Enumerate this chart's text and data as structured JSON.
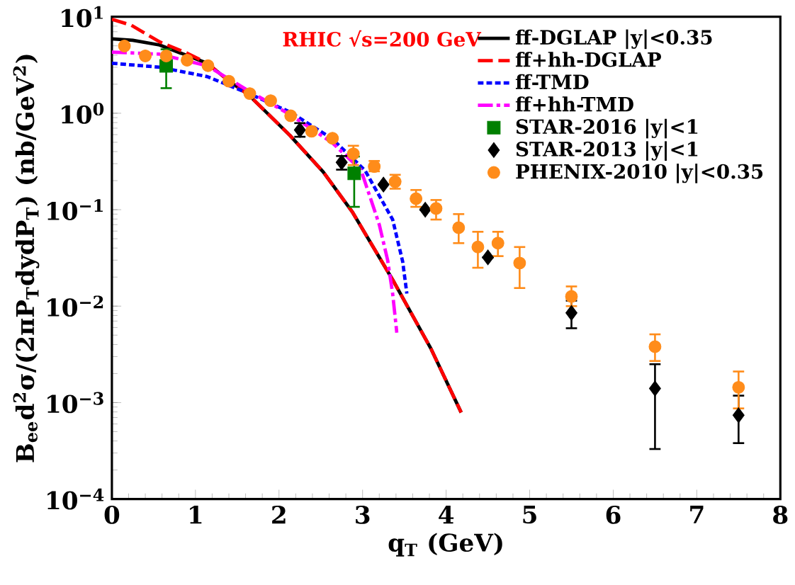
{
  "chart_data": {
    "type": "line",
    "xlabel": "q$_{T}$ (GeV)",
    "ylabel": "B$_{ee}$d$^{2}$σ/(2πP$_{T}$dydP$_{T}$) (nb/GeV$^{2}$)",
    "annotations": [
      "RHIC √s=200 GeV"
    ],
    "log": "y",
    "xlim": [
      0,
      8
    ],
    "xticks": [
      0,
      1,
      2,
      3,
      4,
      5,
      6,
      7,
      8
    ],
    "ylim": [
      0.0001,
      10
    ],
    "yticks": [
      {
        "value": 0.0001,
        "label": "10$^{−4}$"
      },
      {
        "value": 0.001,
        "label": "10$^{−3}$"
      },
      {
        "value": 0.01,
        "label": "10$^{−2}$"
      },
      {
        "value": 0.1,
        "label": "10$^{−1}$"
      },
      {
        "value": 1,
        "label": "10$^{0}$"
      },
      {
        "value": 10,
        "label": "10$^{1}$"
      }
    ],
    "legend": "top right",
    "series": [
      {
        "name": "ff-DGLAP |y|<0.35",
        "color": "#000000",
        "line_style": "solid",
        "marker": "none",
        "x": [
          0,
          0.25,
          0.57,
          1.14,
          1.39,
          1.64,
          2.13,
          2.53,
          2.88,
          3.36,
          3.82,
          4.18
        ],
        "values": [
          5.9,
          5.7,
          5.1,
          3.3,
          2.2,
          1.54,
          0.59,
          0.246,
          0.094,
          0.0188,
          0.0036,
          0.00079
        ]
      },
      {
        "name": "ff+hh-DGLAP",
        "color": "#ff0000",
        "line_style": "dashed",
        "marker": "none",
        "x": [
          0,
          0.23,
          0.57,
          0.9,
          1.14,
          1.39,
          1.64,
          2.13,
          2.53,
          2.88,
          3.36,
          3.82,
          4.18
        ],
        "values": [
          9.4,
          8.2,
          5.5,
          4.2,
          3.3,
          2.2,
          1.54,
          0.59,
          0.246,
          0.094,
          0.0188,
          0.0036,
          0.00079
        ]
      },
      {
        "name": "ff-TMD",
        "color": "#0000ff",
        "line_style": "dotted",
        "marker": "none",
        "x": [
          0,
          0.57,
          1.14,
          1.64,
          2.13,
          2.63,
          3.03,
          3.36,
          3.48,
          3.53
        ],
        "values": [
          3.3,
          3.0,
          2.4,
          1.6,
          1.03,
          0.55,
          0.255,
          0.079,
          0.029,
          0.0135
        ]
      },
      {
        "name": "ff+hh-TMD",
        "color": "#ff00ff",
        "line_style": "dashdot",
        "marker": "none",
        "x": [
          0,
          0.57,
          1.14,
          1.64,
          2.13,
          2.63,
          2.98,
          3.2,
          3.3,
          3.36,
          3.41
        ],
        "values": [
          4.3,
          4.1,
          3.1,
          1.7,
          0.97,
          0.5,
          0.26,
          0.07,
          0.03,
          0.0135,
          0.0053
        ]
      },
      {
        "name": "STAR-2016 |y|<1",
        "type": "scatter",
        "color": "#008000",
        "marker": "square",
        "x": [
          0.65,
          2.9
        ],
        "values": [
          3.1,
          0.238
        ],
        "errors": [
          [
            1.82,
            4.6
          ],
          [
            0.107,
            0.356
          ]
        ]
      },
      {
        "name": "STAR-2013 |y|<1",
        "type": "scatter",
        "color": "#000000",
        "marker": "diamond",
        "x": [
          2.25,
          2.75,
          3.25,
          3.75,
          4.5,
          5.5,
          6.5,
          7.5
        ],
        "values": [
          0.67,
          0.31,
          0.182,
          0.1,
          0.032,
          0.0085,
          0.0014,
          0.00074
        ],
        "errors": [
          [
            0.57,
            0.79
          ],
          [
            0.26,
            0.36
          ],
          null,
          null,
          null,
          [
            0.0059,
            0.0114
          ],
          [
            0.00033,
            0.0025
          ],
          [
            0.00038,
            0.00118
          ]
        ]
      },
      {
        "name": "PHENIX-2010 |y|<0.35",
        "type": "scatter",
        "color": "#ff8c1a",
        "marker": "circle",
        "x": [
          0.15,
          0.4,
          0.65,
          0.9,
          1.15,
          1.4,
          1.65,
          1.9,
          2.14,
          2.39,
          2.64,
          2.89,
          3.14,
          3.39,
          3.64,
          3.88,
          4.15,
          4.38,
          4.62,
          4.88,
          5.5,
          6.5,
          7.5
        ],
        "values": [
          4.97,
          3.93,
          3.93,
          3.55,
          3.11,
          2.15,
          1.6,
          1.35,
          0.94,
          0.65,
          0.55,
          0.38,
          0.28,
          0.195,
          0.13,
          0.103,
          0.065,
          0.041,
          0.045,
          0.028,
          0.0126,
          0.0038,
          0.00144
        ],
        "errors": [
          null,
          null,
          null,
          null,
          null,
          null,
          null,
          null,
          null,
          null,
          null,
          [
            0.29,
            0.46
          ],
          [
            0.25,
            0.32
          ],
          [
            0.165,
            0.23
          ],
          [
            0.107,
            0.16
          ],
          [
            0.079,
            0.126
          ],
          [
            0.045,
            0.09
          ],
          [
            0.025,
            0.059
          ],
          [
            0.033,
            0.059
          ],
          [
            0.0154,
            0.041
          ],
          [
            0.01,
            0.016
          ],
          [
            0.0027,
            0.0051
          ],
          [
            0.00087,
            0.0021
          ]
        ]
      }
    ]
  }
}
